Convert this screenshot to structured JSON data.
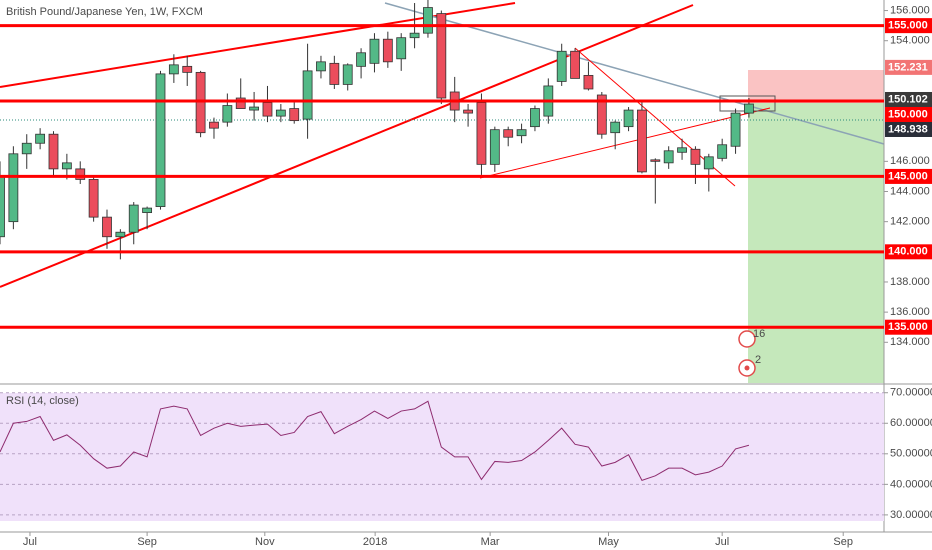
{
  "chart_data": [
    {
      "type": "candlestick",
      "title": "British Pound/Japanese Yen, 1W, FXCM",
      "x": [
        0,
        1,
        2,
        3,
        4,
        5,
        6,
        7,
        8,
        9,
        10,
        11,
        12,
        13,
        14,
        15,
        16,
        17,
        18,
        19,
        20,
        21,
        22,
        23,
        24,
        25,
        26,
        27,
        28,
        29,
        30,
        31,
        32,
        33,
        34,
        35,
        36,
        37,
        38,
        39,
        40,
        41,
        42,
        43,
        44,
        45,
        46,
        47,
        48,
        49,
        50,
        51,
        52,
        53,
        54,
        55,
        56
      ],
      "series": [
        {
          "up_color": "#53b987",
          "down_color": "#eb4d5c",
          "open": [
            141,
            142,
            146.5,
            147.2,
            147.8,
            145.5,
            145.5,
            144.8,
            142.3,
            141,
            141.3,
            142.6,
            143,
            151.8,
            152.3,
            151.9,
            148.6,
            148.6,
            150.2,
            149.4,
            149.9,
            149,
            149.5,
            148.8,
            152,
            152.5,
            151.1,
            152.3,
            152.5,
            154.1,
            152.8,
            154.2,
            154.5,
            155.8,
            150.6,
            149.4,
            149.9,
            145.8,
            148.1,
            147.7,
            148.3,
            149,
            151.3,
            153.3,
            151.7,
            150.4,
            147.9,
            148.3,
            149.4,
            146.1,
            145.9,
            146.6,
            146.8,
            145.5,
            146.2,
            147,
            149.2
          ],
          "high": [
            146,
            147,
            147.8,
            148.2,
            148,
            146.5,
            146,
            145,
            142.8,
            141.5,
            143.3,
            143,
            152,
            153.1,
            153,
            152,
            148.9,
            150.5,
            151.5,
            150.6,
            151,
            149.8,
            149.9,
            153.8,
            153,
            153,
            152.5,
            153.5,
            154.5,
            154.6,
            154.5,
            156.5,
            157,
            156,
            151.6,
            149.8,
            150.5,
            148.3,
            148.3,
            148.5,
            149.7,
            151.5,
            153.8,
            153.5,
            152.6,
            150.6,
            148.7,
            149.6,
            150,
            146.2,
            147,
            147.5,
            147,
            146.5,
            147.5,
            149.5,
            150.2
          ],
          "low": [
            140.5,
            141.5,
            145.5,
            146.8,
            145,
            144.8,
            144.5,
            142,
            140.2,
            139.5,
            140.5,
            141.5,
            142.8,
            151.2,
            151,
            147.6,
            147.5,
            148.3,
            149.5,
            148.7,
            148.6,
            148.6,
            148.5,
            147.5,
            151.5,
            150.8,
            150.7,
            151.5,
            151.9,
            152.2,
            152,
            153.5,
            154.2,
            149.8,
            148.6,
            148.3,
            145.1,
            145.3,
            147,
            147.2,
            148,
            148.5,
            151,
            151.5,
            150.7,
            147.5,
            146.8,
            148,
            145.2,
            143.2,
            145.5,
            146.1,
            144.5,
            144,
            146,
            146.5,
            148.9
          ],
          "close": [
            145,
            146.5,
            147.2,
            147.8,
            145.5,
            145.9,
            144.8,
            142.3,
            141,
            141.3,
            143.1,
            142.9,
            151.8,
            152.4,
            151.9,
            147.9,
            148.2,
            149.7,
            149.5,
            149.6,
            149,
            149.4,
            148.7,
            152,
            152.6,
            151.1,
            152.4,
            153.2,
            154.1,
            152.6,
            154.2,
            154.5,
            156.2,
            150.2,
            149.4,
            149.2,
            145.8,
            148.1,
            147.6,
            148.1,
            149.5,
            151,
            153.3,
            151.5,
            150.8,
            147.8,
            148.6,
            149.4,
            145.3,
            146,
            146.7,
            146.9,
            145.8,
            146.3,
            147.1,
            149.2,
            149.8
          ]
        }
      ],
      "xlim": [
        0,
        66.1
      ],
      "ylim": [
        131.3,
        156.7
      ],
      "yticks": [
        {
          "value": 156,
          "label": "156.000"
        },
        {
          "value": 154,
          "label": "154.000"
        },
        {
          "value": 146,
          "label": "146.000"
        },
        {
          "value": 144,
          "label": "144.000"
        },
        {
          "value": 142,
          "label": "142.000"
        },
        {
          "value": 138,
          "label": "138.000"
        },
        {
          "value": 136,
          "label": "136.000"
        },
        {
          "value": 134,
          "label": "134.000"
        }
      ],
      "horizontal_lines": [
        {
          "value": 155,
          "label": "155.000"
        },
        {
          "value": 150,
          "label": "150.000"
        },
        {
          "value": 145,
          "label": "145.000"
        },
        {
          "value": 140,
          "label": "140.000"
        },
        {
          "value": 135,
          "label": "135.000"
        }
      ],
      "line_color": "#ff0000",
      "price_labels": [
        {
          "value": 152.231,
          "label": "152.231",
          "color": "#f27474"
        },
        {
          "value": 150.102,
          "label": "150.102",
          "color": "#3a3a3a"
        },
        {
          "value": 148.938,
          "label": "148.938",
          "color": "#2a2e39"
        }
      ],
      "annotations": [
        "16",
        "2"
      ]
    },
    {
      "type": "line",
      "title": "RSI (14, close)",
      "x": [
        0,
        1,
        2,
        3,
        4,
        5,
        6,
        7,
        8,
        9,
        10,
        11,
        12,
        13,
        14,
        15,
        16,
        17,
        18,
        19,
        20,
        21,
        22,
        23,
        24,
        25,
        26,
        27,
        28,
        29,
        30,
        31,
        32,
        33,
        34,
        35,
        36,
        37,
        38,
        39,
        40,
        41,
        42,
        43,
        44,
        45,
        46,
        47,
        48,
        49,
        50,
        51,
        52,
        53,
        54,
        55,
        56
      ],
      "values": [
        50.6,
        60,
        60.6,
        62.2,
        54.4,
        56.2,
        52.8,
        48.4,
        45.3,
        46,
        50.6,
        49,
        64.7,
        65.6,
        64.7,
        56,
        58.4,
        60,
        59,
        59.4,
        59.7,
        56,
        57,
        62.2,
        63.8,
        56.6,
        59,
        61.2,
        64,
        61.6,
        64,
        64.7,
        67.2,
        52.2,
        49,
        49,
        41.6,
        47.5,
        47.2,
        47.8,
        50.6,
        54.4,
        58.4,
        53.1,
        52.2,
        46,
        47.2,
        49.7,
        41.3,
        42.8,
        45.3,
        45.3,
        43.1,
        44,
        46,
        51.6,
        52.8
      ],
      "color": "#8e2c6f",
      "xlim": [
        0,
        66.1
      ],
      "ylim": [
        24.4,
        72.2
      ],
      "yticks": [
        {
          "value": 70,
          "label": "70.00000"
        },
        {
          "value": 60,
          "label": "60.00000"
        },
        {
          "value": 50,
          "label": "50.00000"
        },
        {
          "value": 40,
          "label": "40.00000"
        },
        {
          "value": 30,
          "label": "30.00000"
        }
      ],
      "xticks": [
        {
          "value": 2.24,
          "label": "Jul"
        },
        {
          "value": 11,
          "label": "Sep"
        },
        {
          "value": 19.8,
          "label": "Nov"
        },
        {
          "value": 28.05,
          "label": "2018"
        },
        {
          "value": 36.65,
          "label": "Mar"
        },
        {
          "value": 45.5,
          "label": "May"
        },
        {
          "value": 54,
          "label": "Jul"
        },
        {
          "value": 63.05,
          "label": "Sep"
        }
      ]
    }
  ]
}
